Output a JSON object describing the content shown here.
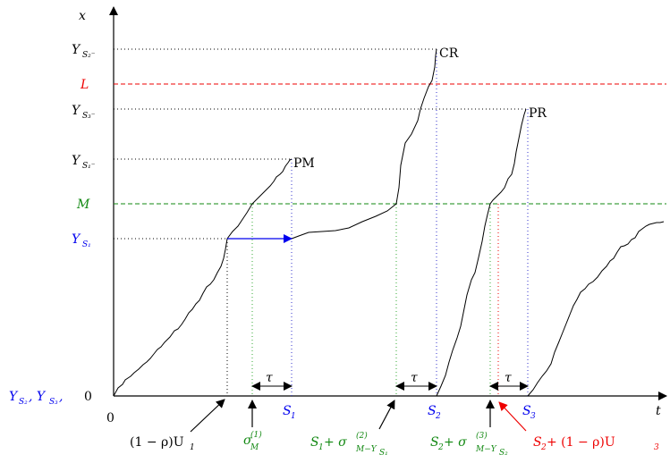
{
  "colors": {
    "black": "#000000",
    "blue": "#0000ee",
    "red": "#ee0000",
    "green": "#118811",
    "dot_green": "#33aa33",
    "dot_blue": "#3333cc"
  },
  "axes": {
    "x_axis_label": "t",
    "y_axis_label": "x",
    "origin_label": "0",
    "y_zero_label": "0"
  },
  "y_labels": {
    "y_s2_minus": "Y",
    "y_s2_minus_sub": "S₂⁻",
    "L": "L",
    "y_s3_minus": "Y",
    "y_s3_minus_sub": "S₃⁻",
    "y_s1_minus": "Y",
    "y_s1_minus_sub": "S₁⁻",
    "M": "M",
    "y_s1": "Y",
    "y_s1_sub": "S₁",
    "bottom_left": "Y",
    "bottom_left_sub1": "S₂",
    "bottom_left_mid": ", Y",
    "bottom_left_sub2": "S₃",
    "bottom_left_tail": ","
  },
  "curve_labels": {
    "pm": "PM",
    "cr": "CR",
    "pr": "PR"
  },
  "tau_label": "τ",
  "x_labels": {
    "s1": "S",
    "s1_sub": "1",
    "s2": "S",
    "s2_sub": "2",
    "s3": "S",
    "s3_sub": "3"
  },
  "bottom_annotations": {
    "one_minus_rho_u1": "(1 − ρ)U",
    "one_minus_rho_u1_sub": "1",
    "sigma_m1": "σ",
    "sigma_m1_sup": "(1)",
    "sigma_m1_sub": "M",
    "s1_plus_sigma": "S",
    "s1_plus_sigma_sub": "1",
    "s1_plus_sigma_mid": " + σ",
    "s1_plus_sigma_sup": "(2)",
    "s1_plus_sigma_subscript": "M−Y",
    "s1_plus_sigma_subsub": "S₁",
    "s2_plus_sigma": "S",
    "s2_plus_sigma_sub": "2",
    "s2_plus_sigma_mid": " + σ",
    "s2_plus_sigma_sup": "(3)",
    "s2_plus_sigma_subscript": "M−Y",
    "s2_plus_sigma_subsub": "S₂",
    "s2_plus_rho_u3": "S",
    "s2_plus_rho_u3_sub": "2",
    "s2_plus_rho_u3_mid": " + (1 − ρ)U",
    "s2_plus_rho_u3_sub2": "3"
  }
}
